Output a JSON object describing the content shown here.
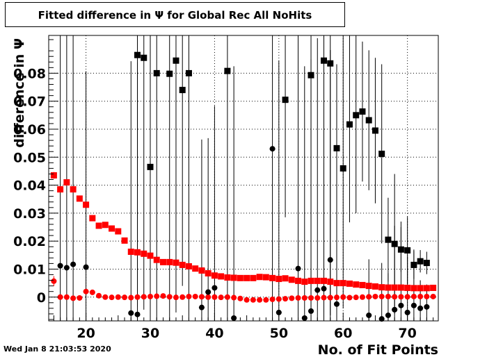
{
  "title": "Fitted difference in  Ψ  for Global Rec All NoHits",
  "datestamp": "Wed Jan  8 21:03:53 2020",
  "chart_data": {
    "type": "scatter",
    "title": "Fitted difference in  Ψ  for Global Rec All NoHits",
    "xlabel": "No. of Fit Points",
    "ylabel": "difference in  Ψ",
    "xlim": [
      14.2,
      74.8
    ],
    "ylim": [
      -0.0085,
      0.0935
    ],
    "x_ticks": [
      20,
      30,
      40,
      50,
      60,
      70
    ],
    "x_tick_labels": [
      "20",
      "30",
      "40",
      "50",
      "60",
      "70"
    ],
    "y_ticks": [
      0,
      0.01,
      0.02,
      0.03,
      0.04,
      0.05,
      0.06,
      0.07,
      0.08
    ],
    "y_tick_labels": [
      "0",
      "0.01",
      "0.02",
      "0.03",
      "0.04",
      "0.05",
      "0.06",
      "0.07",
      "0.08"
    ],
    "grid": true,
    "colors": {
      "red": "#ff0000",
      "black": "#000000"
    },
    "series": [
      {
        "marker": "square",
        "color": "#ff0000",
        "x": [
          15,
          16,
          17,
          18,
          19,
          20,
          21,
          22,
          23,
          24,
          25,
          26,
          27,
          28,
          29,
          30,
          31,
          32,
          33,
          34,
          35,
          36,
          37,
          38,
          39,
          40,
          41,
          42,
          43,
          44,
          45,
          46,
          47,
          48,
          49,
          50,
          51,
          52,
          53,
          54,
          55,
          56,
          57,
          58,
          59,
          60,
          61,
          62,
          63,
          64,
          65,
          66,
          67,
          68,
          69,
          70,
          71,
          72,
          73,
          74
        ],
        "y": [
          0.0435,
          0.0385,
          0.041,
          0.0385,
          0.0352,
          0.033,
          0.0282,
          0.0255,
          0.0258,
          0.0245,
          0.0235,
          0.0202,
          0.0162,
          0.016,
          0.0155,
          0.0148,
          0.0133,
          0.0125,
          0.0125,
          0.0123,
          0.0115,
          0.011,
          0.0102,
          0.0095,
          0.0085,
          0.0077,
          0.0074,
          0.007,
          0.0069,
          0.0068,
          0.0068,
          0.0068,
          0.0072,
          0.0071,
          0.0068,
          0.0065,
          0.0067,
          0.0062,
          0.0058,
          0.0055,
          0.0058,
          0.0058,
          0.0058,
          0.0055,
          0.005,
          0.005,
          0.0048,
          0.0045,
          0.0043,
          0.004,
          0.0038,
          0.0035,
          0.0034,
          0.0034,
          0.0034,
          0.0033,
          0.0032,
          0.0032,
          0.0032,
          0.0033
        ],
        "yerr": [
          0.0012,
          0.0008,
          0.0006,
          0.0006,
          0.0005,
          0.0005,
          0.0004,
          0.0004,
          0.0004,
          0.0004,
          0.0003,
          0.0003,
          0.0003,
          0.0003,
          0.0003,
          0.0003,
          0.0003,
          0.0003,
          0.0003,
          0.0003,
          0.0003,
          0.0003,
          0.0003,
          0.0003,
          0.0003,
          0.0003,
          0.0003,
          0.0003,
          0.0003,
          0.0003,
          0.0003,
          0.0003,
          0.0003,
          0.0003,
          0.0003,
          0.0003,
          0.0003,
          0.0003,
          0.0003,
          0.0003,
          0.0003,
          0.0003,
          0.0003,
          0.0003,
          0.0003,
          0.0003,
          0.0003,
          0.0003,
          0.0003,
          0.0003,
          0.0003,
          0.0003,
          0.0003,
          0.0003,
          0.0003,
          0.0003,
          0.0003,
          0.0003,
          0.0003,
          0.0003
        ]
      },
      {
        "marker": "circle",
        "color": "#ff0000",
        "x": [
          15,
          16,
          17,
          18,
          19,
          20,
          21,
          22,
          23,
          24,
          25,
          26,
          27,
          28,
          29,
          30,
          31,
          32,
          33,
          34,
          35,
          36,
          37,
          38,
          39,
          40,
          41,
          42,
          43,
          44,
          45,
          46,
          47,
          48,
          49,
          50,
          51,
          52,
          53,
          54,
          55,
          56,
          57,
          58,
          59,
          60,
          61,
          62,
          63,
          64,
          65,
          66,
          67,
          68,
          69,
          70,
          71,
          72,
          73,
          74
        ],
        "y": [
          0.0057,
          0.0,
          0.0,
          -0.0004,
          -0.0003,
          0.002,
          0.0017,
          0.0005,
          0.0,
          -0.0001,
          0.0,
          -0.0001,
          -0.0002,
          0.0,
          0.0001,
          0.0002,
          0.0003,
          0.0004,
          0.0001,
          -0.0001,
          0.0,
          0.0002,
          0.0002,
          0.0001,
          0.0,
          0.0,
          -0.0001,
          0.0,
          -0.0002,
          -0.0005,
          -0.001,
          -0.001,
          -0.001,
          -0.001,
          -0.0008,
          -0.0007,
          -0.0006,
          -0.0004,
          -0.0003,
          -0.0003,
          -0.0003,
          -0.0003,
          -0.0002,
          -0.0002,
          -0.0001,
          0.0,
          -0.0002,
          -0.0001,
          0.0,
          0.0001,
          0.0002,
          0.0002,
          0.0002,
          0.0001,
          0.0001,
          0.0001,
          0.0002,
          0.0002,
          0.0002,
          0.0002
        ],
        "yerr": [
          0.0018,
          0.0008,
          0.0006,
          0.0005,
          0.0005,
          0.0004,
          0.0004,
          0.0004,
          0.0003,
          0.0003,
          0.0003,
          0.0003,
          0.0003,
          0.0003,
          0.0003,
          0.0003,
          0.0003,
          0.0003,
          0.0003,
          0.0003,
          0.0003,
          0.0003,
          0.0003,
          0.0003,
          0.0003,
          0.0003,
          0.0003,
          0.0003,
          0.0003,
          0.0003,
          0.0003,
          0.0003,
          0.0003,
          0.0003,
          0.0003,
          0.0003,
          0.0003,
          0.0003,
          0.0003,
          0.0003,
          0.0003,
          0.0003,
          0.0003,
          0.0003,
          0.0003,
          0.0003,
          0.0003,
          0.0003,
          0.0003,
          0.0003,
          0.0003,
          0.0003,
          0.0003,
          0.0003,
          0.0003,
          0.0003,
          0.0003,
          0.0003,
          0.0003,
          0.0003
        ]
      },
      {
        "marker": "square",
        "color": "#000000",
        "x": [
          28,
          29,
          30,
          31,
          33,
          34,
          35,
          36,
          42,
          51,
          55,
          57,
          58,
          59,
          60,
          61,
          62,
          63,
          64,
          65,
          66,
          67,
          68,
          69,
          70,
          71,
          72,
          73
        ],
        "y": [
          0.0865,
          0.0855,
          0.0465,
          0.08,
          0.0798,
          0.0845,
          0.074,
          0.08,
          0.0808,
          0.0705,
          0.0793,
          0.0845,
          0.0835,
          0.0532,
          0.046,
          0.0617,
          0.065,
          0.0663,
          0.0632,
          0.0595,
          0.0512,
          0.0205,
          0.019,
          0.017,
          0.0167,
          0.0115,
          0.0128,
          0.0122
        ],
        "yerr": [
          0.09,
          0.09,
          0.08,
          0.09,
          0.09,
          0.09,
          0.07,
          0.09,
          0.09,
          0.042,
          0.09,
          0.09,
          0.09,
          0.03,
          0.05,
          0.035,
          0.035,
          0.025,
          0.025,
          0.026,
          0.032,
          0.015,
          0.025,
          0.008,
          0.012,
          0.005,
          0.004,
          0.004
        ]
      },
      {
        "marker": "circle",
        "color": "#000000",
        "x": [
          16,
          17,
          18,
          20,
          27,
          28,
          38,
          39,
          40,
          43,
          49,
          50,
          53,
          54,
          55,
          56,
          57,
          58,
          59,
          64,
          66,
          67,
          68,
          69,
          70,
          71,
          72,
          73
        ],
        "y": [
          0.0112,
          0.0105,
          0.0117,
          0.0107,
          -0.0057,
          -0.0062,
          -0.0037,
          0.0018,
          0.0033,
          -0.0075,
          0.053,
          -0.0055,
          0.0102,
          -0.0075,
          -0.005,
          0.0025,
          0.003,
          0.0133,
          -0.0025,
          -0.0065,
          -0.0078,
          -0.0065,
          -0.0045,
          -0.003,
          -0.0055,
          -0.003,
          -0.004,
          -0.0035
        ],
        "yerr": [
          0.09,
          0.09,
          0.09,
          0.07,
          0.09,
          0.09,
          0.06,
          0.055,
          0.065,
          0.09,
          0.09,
          0.09,
          0.09,
          0.09,
          0.09,
          0.09,
          0.045,
          0.075,
          0.07,
          0.02,
          0.02,
          0.015,
          0.03,
          0.03,
          0.02,
          0.02,
          0.01,
          0.008
        ]
      }
    ]
  }
}
